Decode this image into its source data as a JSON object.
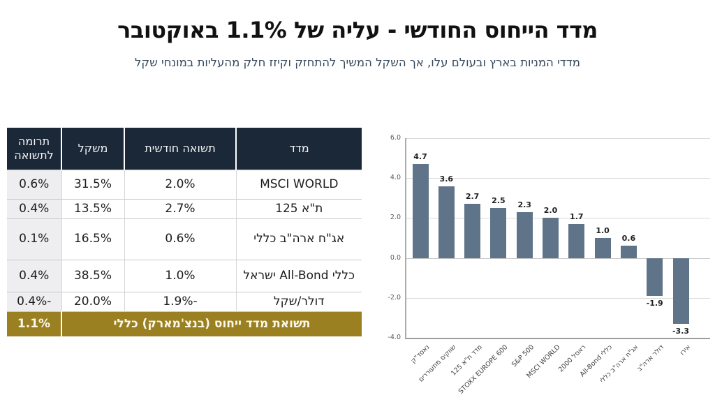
{
  "slide": {
    "title": "מדד הייחוס החודשי - עליה של 1.1% באוקטובר",
    "subtitle": "מדדי המניות בארץ ובעולם עלו, אך השקל המשיך להתחזק וקיזז חלק מהעליות במונחי שקל"
  },
  "colors": {
    "header_navy": "#1b2838",
    "benchmark_gold": "#9a8021",
    "bar_slate": "#607489",
    "subtitle_blue": "#37495d"
  },
  "table": {
    "headers": [
      "מדד",
      "תשואה חודשית",
      "משקל",
      "תרומה לתשואה"
    ],
    "rows": [
      [
        "MSCI WORLD",
        "2.0%",
        "31.5%",
        "0.6%"
      ],
      [
        "ת\"א 125",
        "2.7%",
        "13.5%",
        "0.4%"
      ],
      [
        "אג\"ח ארה\"ב כללי",
        "0.6%",
        "16.5%",
        "0.1%"
      ],
      [
        "כללי All-Bond ישראל",
        "1.0%",
        "38.5%",
        "0.4%"
      ],
      [
        "דולר/שקל",
        "-1.9%",
        "20.0%",
        "-0.4%"
      ]
    ],
    "footer": {
      "label": "תשואת מדד ייחוס (בנצ'מארק) כללי",
      "value": "1.1%"
    }
  },
  "chart_data": {
    "type": "bar",
    "title": "",
    "xlabel": "",
    "ylabel": "",
    "categories": [
      "נאסד\"ק",
      "שווקים מתעוררים",
      "מדד ת\"א 125",
      "STOXX EUROPE 600",
      "S&P 500",
      "MSCI WORLD",
      "ראסל 2000",
      "כללי All-Bond",
      "אג\"ח ארה\"ב כללי",
      "דולר ארה\"ב",
      "אירו"
    ],
    "values": [
      4.7,
      3.6,
      2.7,
      2.5,
      2.3,
      2.0,
      1.7,
      1.0,
      0.6,
      -1.9,
      -3.3
    ],
    "data_labels": [
      "4.7",
      "3.6",
      "2.7",
      "2.5",
      "2.3",
      "2.0",
      "1.7",
      "1.0",
      "0.6",
      "-1.9",
      "-3.3"
    ],
    "ylim": [
      -4.0,
      6.0
    ],
    "yticks": [
      "6.0",
      "4.0",
      "2.0",
      "0.0",
      "-2.0",
      "-4.0"
    ],
    "grid": true,
    "legend": false,
    "bar_color": "#607489"
  }
}
